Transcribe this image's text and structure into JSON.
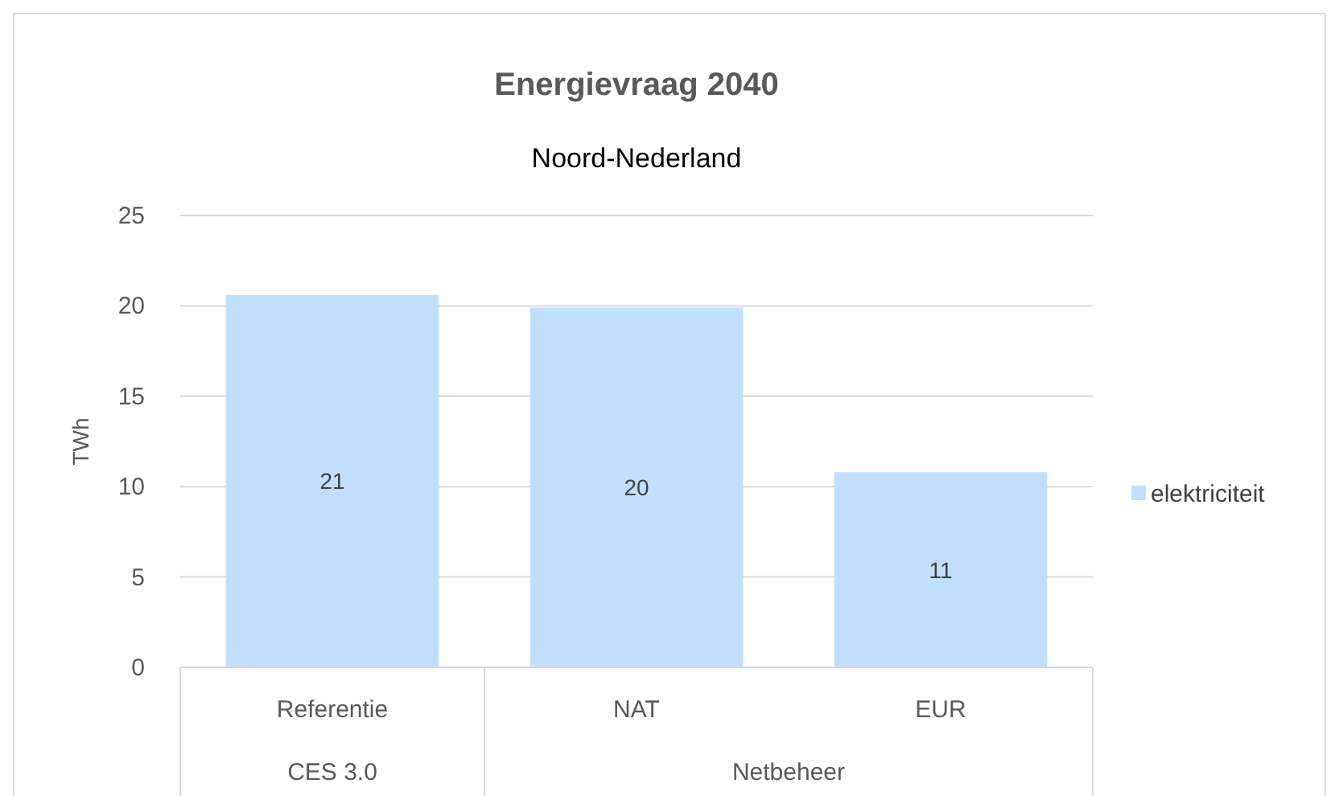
{
  "chart_data": {
    "type": "bar",
    "title": "Energievraag 2040",
    "subtitle": "Noord-Nederland",
    "ylabel": "TWh",
    "categories": [
      "Referentie",
      "NAT",
      "EUR"
    ],
    "series": [
      {
        "name": "elektriciteit",
        "color": "#c1dffc",
        "values": [
          20.6,
          19.9,
          10.8
        ],
        "value_labels": [
          "21",
          "20",
          "11"
        ]
      }
    ],
    "annotations": [
      "CES 3.0",
      "Netbeheer"
    ],
    "ylim": [
      0,
      25
    ],
    "yticks": [
      0,
      5,
      10,
      15,
      20,
      25
    ],
    "grid": "y",
    "legend": "right"
  }
}
